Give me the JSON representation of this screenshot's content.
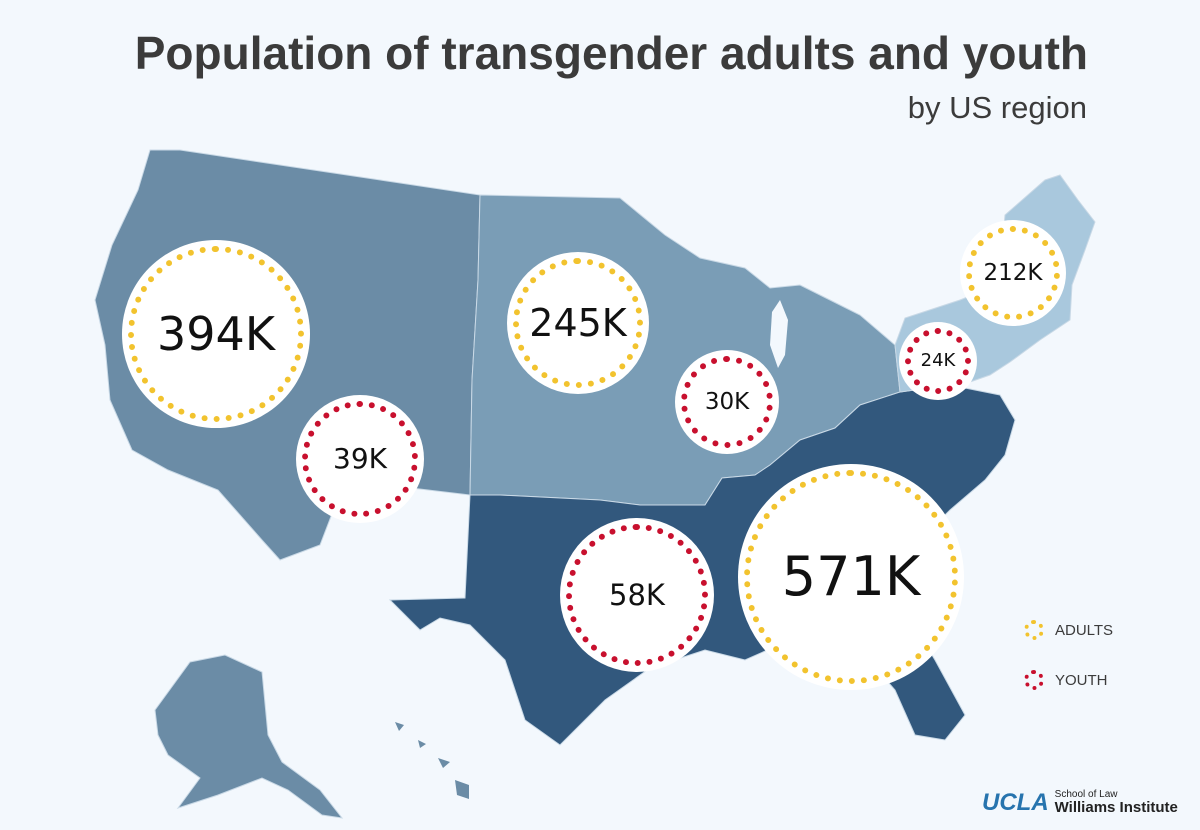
{
  "title": "Population of transgender adults and youth",
  "subtitle": "by US region",
  "colors": {
    "background": "#f3f8fd",
    "west": "#6b8ca6",
    "midwest": "#7a9db6",
    "south": "#32587d",
    "northeast": "#a9c8dd",
    "adults": "#f2c32e",
    "youth": "#c8102e"
  },
  "regions": {
    "west": {
      "adults": "394K",
      "youth": "39K"
    },
    "midwest": {
      "adults": "245K",
      "youth": "30K"
    },
    "south": {
      "adults": "571K",
      "youth": "58K"
    },
    "northeast": {
      "adults": "212K",
      "youth": "24K"
    }
  },
  "legend": {
    "adults": "ADULTS",
    "youth": "YOUTH"
  },
  "logo": {
    "ucla": "UCLA",
    "school": "School of Law",
    "institute": "Williams Institute"
  }
}
